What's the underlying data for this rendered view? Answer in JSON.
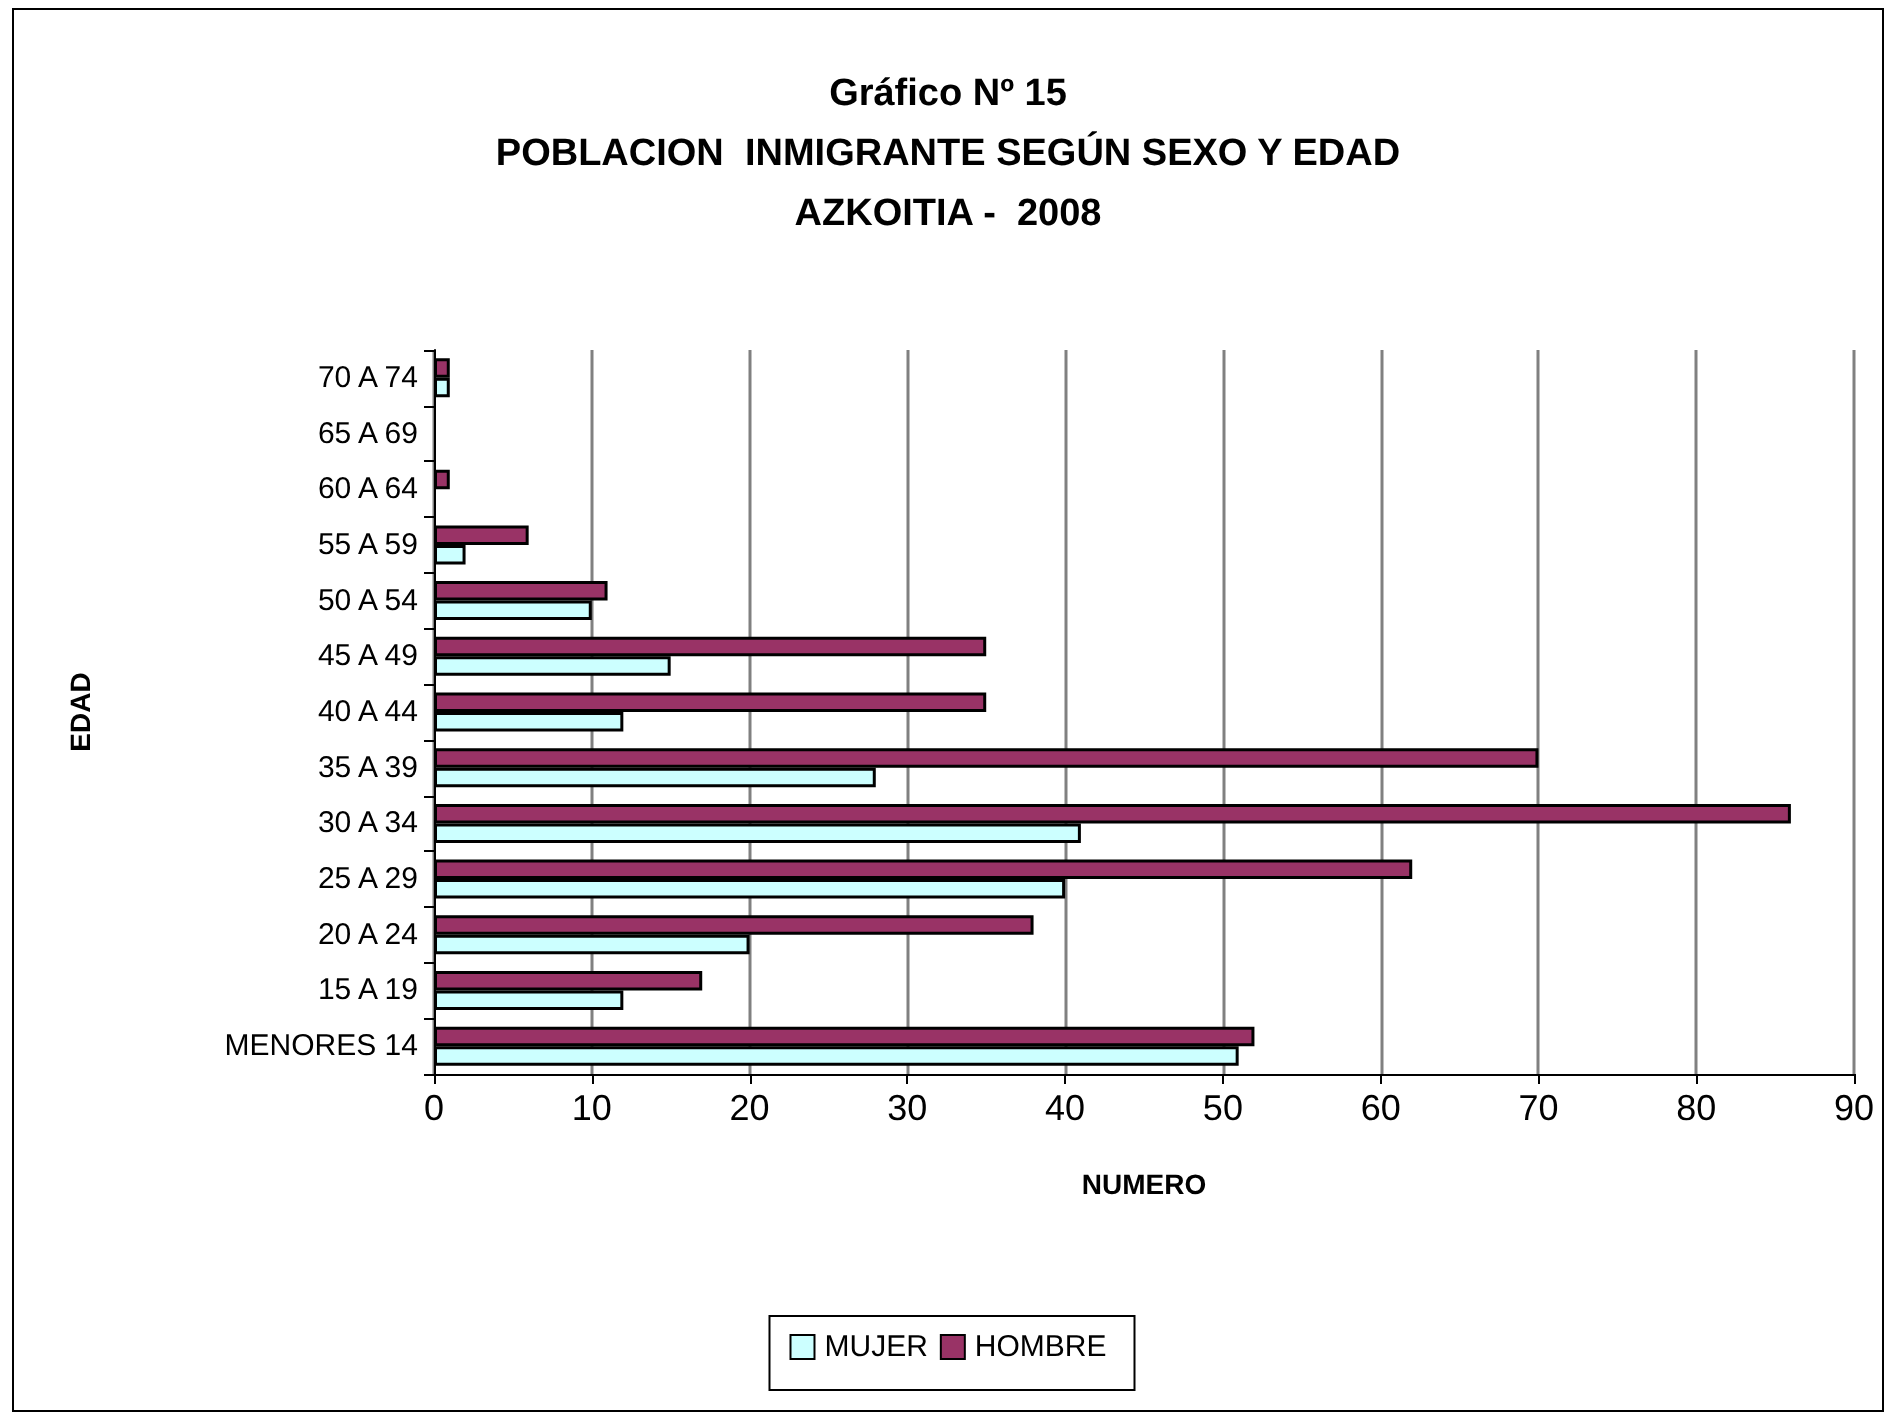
{
  "chart_data": {
    "type": "bar",
    "orientation": "horizontal",
    "title": "Gráfico Nº 15\nPOBLACION  INMIGRANTE SEGÚN SEXO Y EDAD\nAZKOITIA -  2008",
    "xlabel": "NUMERO",
    "ylabel": "EDAD",
    "categories": [
      "70 A 74",
      "65 A 69",
      "60 A 64",
      "55 A 59",
      "50 A 54",
      "45 A 49",
      "40 A 44",
      "35 A 39",
      "30 A 34",
      "25 A 29",
      "20 A 24",
      "15 A 19",
      "MENORES 14"
    ],
    "series": [
      {
        "name": "MUJER",
        "color": "#ccffff",
        "values": [
          1,
          null,
          null,
          2,
          10,
          15,
          12,
          28,
          41,
          40,
          20,
          12,
          51
        ]
      },
      {
        "name": "HOMBRE",
        "color": "#993366",
        "values": [
          1,
          null,
          1,
          6,
          11,
          35,
          35,
          70,
          86,
          62,
          38,
          17,
          52
        ]
      }
    ],
    "xlim": [
      0,
      90
    ],
    "xticks": [
      0,
      10,
      20,
      30,
      40,
      50,
      60,
      70,
      80,
      90
    ],
    "grid": "x",
    "legend": "bottom"
  }
}
